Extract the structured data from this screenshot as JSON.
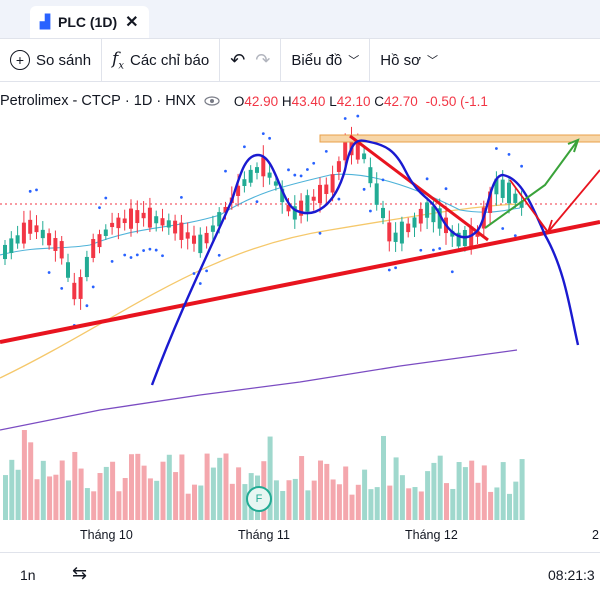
{
  "tab": {
    "title": "PLC (1D)",
    "icon": "chart-tab-icon"
  },
  "toolbar": {
    "compare_label": "So sánh",
    "indicators_label": "Các chỉ báo",
    "chart_type_label": "Biểu đồ",
    "profile_label": "Hồ sơ"
  },
  "legend": {
    "symbol_name": "Petrolimex - CTCP",
    "interval": "1D",
    "exchange": "HNX",
    "open_label": "O",
    "open": "42.90",
    "high_label": "H",
    "high": "43.40",
    "low_label": "L",
    "low": "42.10",
    "close_label": "C",
    "close": "42.70",
    "change": "-0.50 (-1.1"
  },
  "x_axis": {
    "labels": [
      "Tháng 10",
      "Tháng 11",
      "Tháng 12",
      "2"
    ]
  },
  "bottom": {
    "range_label": "1n",
    "time": "08:21:3"
  },
  "events": {
    "badge": "F"
  },
  "colors": {
    "up": "#22ab94",
    "down": "#f23645",
    "trendline": "#e8141f",
    "drawing": "#1a1ad0",
    "ma_slow": "#7b4cc2",
    "ma_mid": "#f5c86b"
  }
}
